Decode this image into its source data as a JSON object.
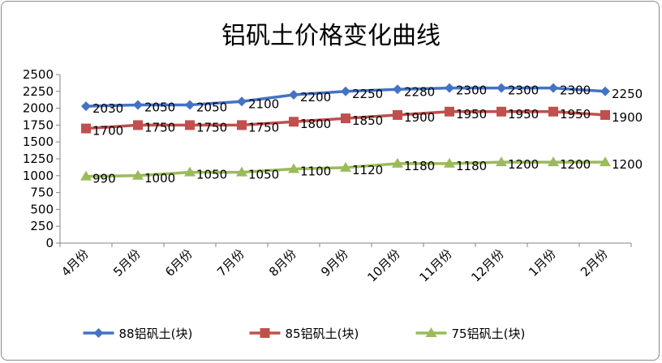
{
  "chart_data": {
    "type": "line",
    "title": "铝矾土价格变化曲线",
    "xlabel": "",
    "ylabel": "",
    "categories": [
      "4月份",
      "5月份",
      "6月份",
      "7月份",
      "8月份",
      "9月份",
      "10月份",
      "11月份",
      "12月份",
      "1月份",
      "2月份"
    ],
    "ylim": [
      0,
      2500
    ],
    "yticks": [
      0,
      250,
      500,
      750,
      1000,
      1250,
      1500,
      1750,
      2000,
      2250,
      2500
    ],
    "grid": false,
    "legend": "bottom",
    "series": [
      {
        "name": "88铝矾土(块)",
        "color": "#4472c4",
        "marker": "diamond",
        "values": [
          2030,
          2050,
          2050,
          2100,
          2200,
          2250,
          2280,
          2300,
          2300,
          2300,
          2250
        ]
      },
      {
        "name": "85铝矾土(块)",
        "color": "#c0504d",
        "marker": "square",
        "values": [
          1700,
          1750,
          1750,
          1750,
          1800,
          1850,
          1900,
          1950,
          1950,
          1950,
          1900
        ]
      },
      {
        "name": "75铝矾土(块)",
        "color": "#9bbb59",
        "marker": "triangle",
        "values": [
          990,
          1000,
          1050,
          1050,
          1100,
          1120,
          1180,
          1180,
          1200,
          1200,
          1200
        ]
      }
    ]
  }
}
